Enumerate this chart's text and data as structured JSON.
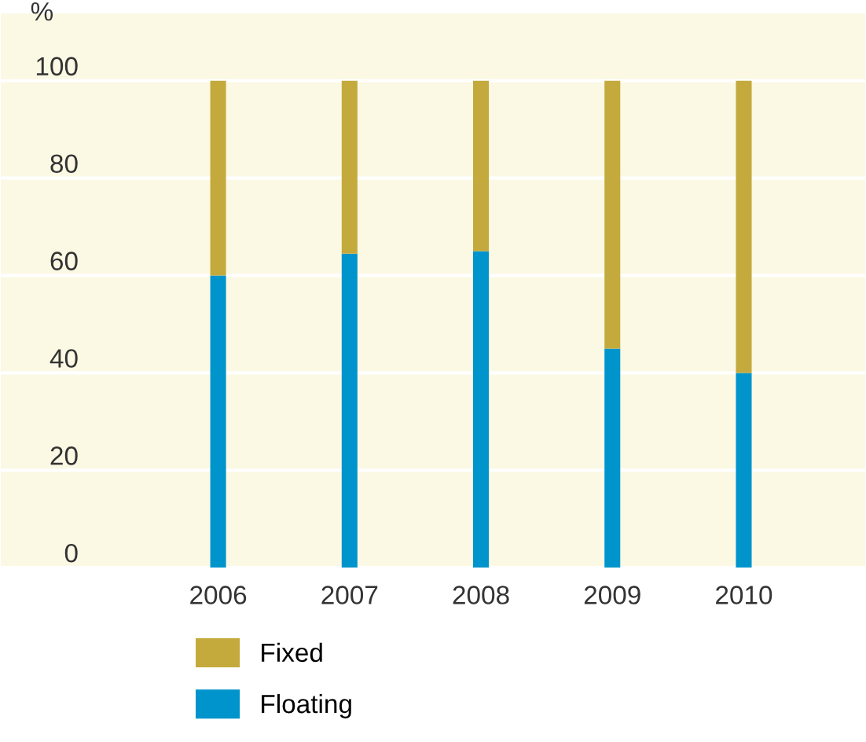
{
  "chart_data": {
    "type": "bar",
    "stacked": true,
    "ylabel": "%",
    "categories": [
      "2006",
      "2007",
      "2008",
      "2009",
      "2010"
    ],
    "series": [
      {
        "name": "Floating",
        "color": "#0094cc",
        "values": [
          60,
          64.5,
          65,
          45,
          40
        ]
      },
      {
        "name": "Fixed",
        "color": "#c4aa3c",
        "values": [
          40,
          35.5,
          35,
          55,
          60
        ]
      }
    ],
    "ylim": [
      0,
      114
    ],
    "yticks": [
      0,
      20,
      40,
      60,
      80,
      100
    ],
    "grid": "y",
    "legend": "bottom"
  }
}
